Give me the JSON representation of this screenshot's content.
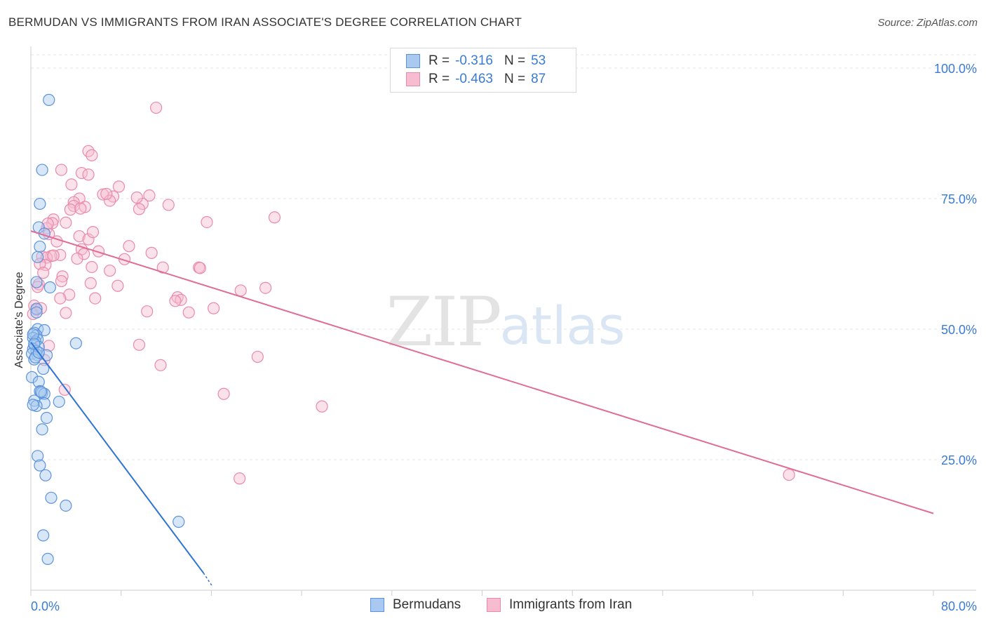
{
  "title": "BERMUDAN VS IMMIGRANTS FROM IRAN ASSOCIATE'S DEGREE CORRELATION CHART",
  "source": "Source: ZipAtlas.com",
  "watermark": {
    "zip": "ZIP",
    "atlas": "atlas"
  },
  "legend": {
    "r_label": "R =",
    "n_label": "N =",
    "rows": [
      {
        "r": "-0.316",
        "n": "53"
      },
      {
        "r": "-0.463",
        "n": "87"
      }
    ]
  },
  "colors": {
    "blue_fill": "#a9c9f0",
    "blue_stroke": "#5b93dc",
    "blue_line": "#2f73d6",
    "pink_fill": "#f7bcd0",
    "pink_stroke": "#e98aab",
    "pink_line": "#e06d97",
    "tick_label": "#3a7bd5",
    "grid": "#e5e5e5"
  },
  "chart_data": {
    "type": "scatter",
    "title": "BERMUDAN VS IMMIGRANTS FROM IRAN ASSOCIATE'S DEGREE CORRELATION CHART",
    "xlabel": "",
    "ylabel": "Associate's Degree",
    "xlim": [
      0,
      80
    ],
    "ylim": [
      0,
      105
    ],
    "x_tick_labels": [
      "0.0%",
      "80.0%"
    ],
    "y_ticks": [
      25,
      50,
      75,
      100
    ],
    "y_tick_labels": [
      "25.0%",
      "50.0%",
      "75.0%",
      "100.0%"
    ],
    "grid": "horizontal dashed",
    "legend_position": "top-center",
    "series": [
      {
        "name": "Bermudans",
        "color": "blue",
        "r": -0.316,
        "n": 53,
        "trend": {
          "x": [
            0,
            15.3
          ],
          "y": [
            47.5,
            3.3
          ]
        },
        "points": [
          [
            1.6,
            93.9
          ],
          [
            1.0,
            80.5
          ],
          [
            0.8,
            74.0
          ],
          [
            0.7,
            69.5
          ],
          [
            1.2,
            68.3
          ],
          [
            0.8,
            65.8
          ],
          [
            0.6,
            63.8
          ],
          [
            0.5,
            59.0
          ],
          [
            1.7,
            58.0
          ],
          [
            0.5,
            53.9
          ],
          [
            0.5,
            53.2
          ],
          [
            0.6,
            50.0
          ],
          [
            1.2,
            49.8
          ],
          [
            0.3,
            49.3
          ],
          [
            0.5,
            48.8
          ],
          [
            0.2,
            48.3
          ],
          [
            0.6,
            48.0
          ],
          [
            0.4,
            47.6
          ],
          [
            0.3,
            47.0
          ],
          [
            0.7,
            46.6
          ],
          [
            0.2,
            46.2
          ],
          [
            0.5,
            45.8
          ],
          [
            0.1,
            45.3
          ],
          [
            0.6,
            45.0
          ],
          [
            1.4,
            45.0
          ],
          [
            0.3,
            44.2
          ],
          [
            4.0,
            47.3
          ],
          [
            1.1,
            42.4
          ],
          [
            0.1,
            40.8
          ],
          [
            0.7,
            39.9
          ],
          [
            0.8,
            38.1
          ],
          [
            1.0,
            37.8
          ],
          [
            1.2,
            37.6
          ],
          [
            0.3,
            36.3
          ],
          [
            1.2,
            35.8
          ],
          [
            2.5,
            36.1
          ],
          [
            0.5,
            35.3
          ],
          [
            1.4,
            33.0
          ],
          [
            1.0,
            30.8
          ],
          [
            0.6,
            25.7
          ],
          [
            0.8,
            23.9
          ],
          [
            1.3,
            22.0
          ],
          [
            1.8,
            17.7
          ],
          [
            3.1,
            16.2
          ],
          [
            13.1,
            13.1
          ],
          [
            1.1,
            10.5
          ],
          [
            1.5,
            6.0
          ],
          [
            0.2,
            49.0
          ],
          [
            0.4,
            44.6
          ],
          [
            0.9,
            38.0
          ],
          [
            0.3,
            47.2
          ],
          [
            0.7,
            45.5
          ],
          [
            0.2,
            35.5
          ]
        ]
      },
      {
        "name": "Immigrants from Iran",
        "color": "pink",
        "r": -0.463,
        "n": 87,
        "trend": {
          "x": [
            0,
            80
          ],
          "y": [
            68.8,
            14.7
          ]
        },
        "points": [
          [
            11.1,
            92.4
          ],
          [
            5.1,
            84.1
          ],
          [
            5.4,
            83.3
          ],
          [
            2.7,
            80.5
          ],
          [
            4.5,
            79.9
          ],
          [
            5.1,
            79.6
          ],
          [
            3.6,
            77.7
          ],
          [
            7.8,
            77.3
          ],
          [
            6.4,
            75.8
          ],
          [
            7.3,
            75.4
          ],
          [
            10.5,
            75.6
          ],
          [
            4.3,
            75.0
          ],
          [
            3.8,
            74.3
          ],
          [
            7.0,
            74.6
          ],
          [
            9.9,
            74.0
          ],
          [
            12.2,
            73.8
          ],
          [
            3.8,
            73.6
          ],
          [
            4.8,
            73.4
          ],
          [
            9.6,
            73.0
          ],
          [
            3.5,
            72.9
          ],
          [
            4.4,
            73.1
          ],
          [
            2.0,
            71.0
          ],
          [
            21.6,
            71.4
          ],
          [
            1.9,
            70.3
          ],
          [
            3.1,
            70.4
          ],
          [
            15.6,
            70.5
          ],
          [
            1.4,
            69.3
          ],
          [
            1.6,
            68.2
          ],
          [
            4.3,
            67.8
          ],
          [
            5.1,
            67.2
          ],
          [
            5.5,
            68.6
          ],
          [
            2.3,
            66.8
          ],
          [
            8.7,
            65.9
          ],
          [
            4.5,
            65.3
          ],
          [
            6.0,
            64.9
          ],
          [
            10.7,
            64.6
          ],
          [
            4.7,
            64.4
          ],
          [
            2.6,
            64.2
          ],
          [
            1.8,
            64.0
          ],
          [
            1.0,
            63.9
          ],
          [
            1.4,
            63.7
          ],
          [
            4.1,
            63.5
          ],
          [
            8.3,
            63.4
          ],
          [
            1.3,
            62.3
          ],
          [
            5.4,
            61.9
          ],
          [
            0.8,
            62.5
          ],
          [
            11.7,
            61.8
          ],
          [
            14.9,
            61.8
          ],
          [
            15.0,
            61.7
          ],
          [
            7.0,
            61.2
          ],
          [
            1.1,
            60.8
          ],
          [
            2.8,
            60.1
          ],
          [
            2.7,
            59.2
          ],
          [
            5.3,
            58.8
          ],
          [
            7.7,
            58.3
          ],
          [
            0.7,
            58.6
          ],
          [
            20.8,
            57.9
          ],
          [
            18.6,
            57.4
          ],
          [
            3.4,
            56.6
          ],
          [
            13.0,
            56.1
          ],
          [
            2.6,
            55.9
          ],
          [
            5.7,
            55.9
          ],
          [
            13.3,
            55.6
          ],
          [
            12.8,
            55.4
          ],
          [
            16.2,
            54.0
          ],
          [
            0.3,
            54.5
          ],
          [
            0.5,
            53.7
          ],
          [
            10.3,
            53.4
          ],
          [
            3.1,
            53.1
          ],
          [
            14.0,
            53.2
          ],
          [
            0.2,
            52.9
          ],
          [
            9.6,
            47.0
          ],
          [
            1.6,
            46.8
          ],
          [
            20.1,
            44.7
          ],
          [
            11.5,
            43.1
          ],
          [
            3.0,
            38.4
          ],
          [
            17.1,
            37.6
          ],
          [
            25.8,
            35.2
          ],
          [
            18.5,
            21.4
          ],
          [
            67.2,
            22.1
          ],
          [
            1.2,
            44.1
          ],
          [
            0.6,
            58.1
          ],
          [
            2.0,
            64.1
          ],
          [
            6.7,
            75.9
          ],
          [
            9.4,
            75.2
          ],
          [
            1.5,
            70.2
          ],
          [
            0.9,
            54.0
          ]
        ]
      }
    ]
  }
}
